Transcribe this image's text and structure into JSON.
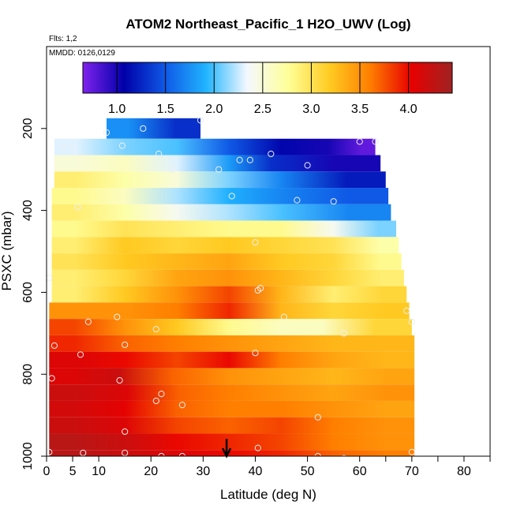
{
  "chart_data": {
    "type": "heatmap",
    "title": "ATOM2 Northeast_Pacific_1 H2O_UWV (Log)",
    "flights_label": "Flts: 1,2",
    "dates_label": "MMDD: 0126,0129",
    "xlabel": "Latitude (deg N)",
    "ylabel": "PSXC (mbar)",
    "xlim": [
      0,
      85
    ],
    "ylim": [
      1000,
      0
    ],
    "x_ticks": [
      0,
      5,
      10,
      20,
      30,
      40,
      50,
      60,
      70,
      80
    ],
    "x_minor_ticks": [
      65,
      75,
      85
    ],
    "y_ticks": [
      200,
      400,
      600,
      800,
      1000
    ],
    "colorbar": {
      "ticks": [
        "1.0",
        "1.5",
        "2.0",
        "2.5",
        "3.0",
        "3.5",
        "4.0"
      ],
      "tick_values": [
        1.0,
        1.5,
        2.0,
        2.5,
        3.0,
        3.5,
        4.0
      ],
      "range": [
        0.65,
        4.45
      ],
      "stops": [
        "#7f22ee",
        "#0000a8",
        "#0f58e6",
        "#20b4ff",
        "#f4f8ff",
        "#ffff99",
        "#ffcc22",
        "#ff7e00",
        "#e80000",
        "#9f2222"
      ]
    },
    "arrow_latitude": 34.5,
    "rows": [
      {
        "p_top": 175,
        "p_bot": 225,
        "segments": [
          [
            11.5,
            20,
            1.75
          ],
          [
            20,
            29.5,
            1.3
          ]
        ]
      },
      {
        "p_top": 225,
        "p_bot": 265,
        "segments": [
          [
            1.5,
            10,
            2.3
          ],
          [
            10,
            20,
            2.1
          ],
          [
            20,
            30,
            2.0
          ],
          [
            30,
            40,
            1.5
          ],
          [
            40,
            50,
            1.1
          ],
          [
            50,
            58,
            1.0
          ],
          [
            58,
            63,
            0.75
          ]
        ]
      },
      {
        "p_top": 265,
        "p_bot": 305,
        "segments": [
          [
            1.5,
            10,
            2.5
          ],
          [
            10,
            20,
            2.6
          ],
          [
            20,
            30,
            2.3
          ],
          [
            30,
            40,
            1.8
          ],
          [
            40,
            46,
            1.3
          ],
          [
            46,
            64,
            1.0
          ]
        ]
      },
      {
        "p_top": 305,
        "p_bot": 345,
        "segments": [
          [
            1.5,
            10,
            2.9
          ],
          [
            10,
            20,
            2.7
          ],
          [
            20,
            30,
            2.5
          ],
          [
            30,
            40,
            2.1
          ],
          [
            40,
            50,
            1.7
          ],
          [
            50,
            65,
            1.2
          ]
        ]
      },
      {
        "p_top": 345,
        "p_bot": 385,
        "segments": [
          [
            1,
            10,
            2.8
          ],
          [
            10,
            20,
            2.6
          ],
          [
            20,
            30,
            2.2
          ],
          [
            30,
            40,
            1.9
          ],
          [
            40,
            50,
            1.7
          ],
          [
            50,
            65.5,
            1.5
          ]
        ]
      },
      {
        "p_top": 385,
        "p_bot": 425,
        "segments": [
          [
            1,
            10,
            2.9
          ],
          [
            10,
            20,
            2.7
          ],
          [
            20,
            30,
            2.4
          ],
          [
            30,
            40,
            2.2
          ],
          [
            40,
            50,
            2.0
          ],
          [
            50,
            66,
            1.7
          ]
        ]
      },
      {
        "p_top": 425,
        "p_bot": 465,
        "segments": [
          [
            1,
            10,
            2.8
          ],
          [
            10,
            20,
            3.0
          ],
          [
            20,
            30,
            2.9
          ],
          [
            30,
            40,
            2.8
          ],
          [
            40,
            50,
            2.8
          ],
          [
            50,
            60,
            2.4
          ],
          [
            60,
            67,
            2.1
          ]
        ]
      },
      {
        "p_top": 465,
        "p_bot": 505,
        "segments": [
          [
            1,
            10,
            2.9
          ],
          [
            10,
            20,
            3.2
          ],
          [
            20,
            30,
            3.1
          ],
          [
            30,
            40,
            3.2
          ],
          [
            40,
            50,
            3.1
          ],
          [
            50,
            60,
            3.0
          ],
          [
            60,
            67.5,
            2.7
          ]
        ]
      },
      {
        "p_top": 505,
        "p_bot": 545,
        "segments": [
          [
            1,
            10,
            3.0
          ],
          [
            10,
            20,
            3.2
          ],
          [
            20,
            30,
            3.3
          ],
          [
            30,
            40,
            3.4
          ],
          [
            40,
            50,
            3.2
          ],
          [
            50,
            60,
            3.1
          ],
          [
            60,
            68,
            2.8
          ]
        ]
      },
      {
        "p_top": 545,
        "p_bot": 585,
        "segments": [
          [
            1,
            10,
            2.9
          ],
          [
            10,
            20,
            3.1
          ],
          [
            20,
            30,
            3.4
          ],
          [
            30,
            40,
            3.5
          ],
          [
            40,
            50,
            3.3
          ],
          [
            50,
            60,
            3.1
          ],
          [
            60,
            68.5,
            2.9
          ]
        ]
      },
      {
        "p_top": 585,
        "p_bot": 625,
        "segments": [
          [
            1,
            10,
            2.9
          ],
          [
            10,
            20,
            3.2
          ],
          [
            20,
            30,
            3.5
          ],
          [
            30,
            40,
            3.8
          ],
          [
            40,
            50,
            3.3
          ],
          [
            50,
            60,
            2.9
          ],
          [
            60,
            69,
            3.1
          ]
        ]
      },
      {
        "p_top": 625,
        "p_bot": 665,
        "segments": [
          [
            0.5,
            10,
            3.5
          ],
          [
            10,
            20,
            3.5
          ],
          [
            20,
            30,
            3.6
          ],
          [
            30,
            40,
            3.9
          ],
          [
            40,
            50,
            3.3
          ],
          [
            50,
            60,
            3.1
          ],
          [
            60,
            69.5,
            3.2
          ]
        ]
      },
      {
        "p_top": 665,
        "p_bot": 705,
        "segments": [
          [
            0.5,
            10,
            3.8
          ],
          [
            10,
            20,
            3.5
          ],
          [
            20,
            30,
            3.2
          ],
          [
            30,
            40,
            2.8
          ],
          [
            40,
            50,
            2.6
          ],
          [
            50,
            56,
            2.6
          ],
          [
            56,
            70,
            3.1
          ]
        ]
      },
      {
        "p_top": 705,
        "p_bot": 745,
        "segments": [
          [
            0.5,
            10,
            3.9
          ],
          [
            10,
            20,
            3.7
          ],
          [
            20,
            30,
            3.6
          ],
          [
            30,
            40,
            3.5
          ],
          [
            40,
            50,
            3.4
          ],
          [
            50,
            60,
            3.3
          ],
          [
            60,
            70.5,
            3.3
          ]
        ]
      },
      {
        "p_top": 745,
        "p_bot": 785,
        "segments": [
          [
            0.5,
            10,
            4.1
          ],
          [
            10,
            20,
            4.0
          ],
          [
            20,
            30,
            3.8
          ],
          [
            30,
            40,
            4.0
          ],
          [
            40,
            50,
            3.6
          ],
          [
            50,
            60,
            3.4
          ],
          [
            60,
            70.5,
            3.3
          ]
        ]
      },
      {
        "p_top": 785,
        "p_bot": 825,
        "segments": [
          [
            0.5,
            10,
            4.1
          ],
          [
            10,
            18,
            4.2
          ],
          [
            18,
            30,
            3.7
          ],
          [
            30,
            40,
            3.5
          ],
          [
            40,
            50,
            3.4
          ],
          [
            50,
            60,
            3.3
          ],
          [
            60,
            70.5,
            3.4
          ]
        ]
      },
      {
        "p_top": 825,
        "p_bot": 865,
        "segments": [
          [
            0.5,
            10,
            4.2
          ],
          [
            10,
            21,
            4.1
          ],
          [
            21,
            30,
            3.7
          ],
          [
            30,
            40,
            3.6
          ],
          [
            40,
            50,
            3.5
          ],
          [
            50,
            60,
            3.4
          ],
          [
            60,
            70.5,
            3.5
          ]
        ]
      },
      {
        "p_top": 865,
        "p_bot": 905,
        "segments": [
          [
            0.5,
            10,
            4.15
          ],
          [
            10,
            20,
            4.05
          ],
          [
            20,
            30,
            3.7
          ],
          [
            30,
            40,
            3.6
          ],
          [
            40,
            50,
            3.6
          ],
          [
            50,
            60,
            3.5
          ],
          [
            60,
            70.5,
            3.4
          ]
        ]
      },
      {
        "p_top": 905,
        "p_bot": 945,
        "segments": [
          [
            0.5,
            10,
            4.2
          ],
          [
            10,
            20,
            4.1
          ],
          [
            20,
            30,
            3.8
          ],
          [
            30,
            40,
            3.7
          ],
          [
            40,
            50,
            3.8
          ],
          [
            50,
            60,
            3.6
          ],
          [
            60,
            70.5,
            3.5
          ]
        ]
      },
      {
        "p_top": 945,
        "p_bot": 985,
        "segments": [
          [
            0.5,
            10,
            4.3
          ],
          [
            10,
            20,
            4.2
          ],
          [
            20,
            30,
            4.0
          ],
          [
            30,
            40,
            3.9
          ],
          [
            40,
            50,
            3.8
          ],
          [
            50,
            60,
            3.6
          ],
          [
            60,
            70.5,
            3.5
          ]
        ]
      },
      {
        "p_top": 985,
        "p_bot": 1000,
        "segments": [
          [
            0.5,
            10,
            4.3
          ],
          [
            10,
            20,
            4.2
          ],
          [
            20,
            30,
            4.1
          ],
          [
            30,
            40,
            4.0
          ],
          [
            40,
            50,
            3.9
          ],
          [
            50,
            60,
            3.7
          ],
          [
            60,
            70.5,
            3.6
          ]
        ]
      }
    ],
    "points": [
      [
        11.5,
        210
      ],
      [
        18.5,
        200
      ],
      [
        29.5,
        180
      ],
      [
        3,
        245
      ],
      [
        5,
        245
      ],
      [
        14.5,
        242
      ],
      [
        21.5,
        262
      ],
      [
        24,
        300
      ],
      [
        33,
        300
      ],
      [
        37,
        277
      ],
      [
        39,
        277
      ],
      [
        43,
        262
      ],
      [
        50,
        290
      ],
      [
        60,
        232
      ],
      [
        63,
        232
      ],
      [
        35.5,
        365
      ],
      [
        48,
        375
      ],
      [
        55,
        378
      ],
      [
        6,
        392
      ],
      [
        40,
        478
      ],
      [
        0.5,
        565
      ],
      [
        40.5,
        595
      ],
      [
        41,
        590
      ],
      [
        8,
        672
      ],
      [
        13.5,
        660
      ],
      [
        21,
        690
      ],
      [
        45.5,
        660
      ],
      [
        57,
        700
      ],
      [
        69,
        645
      ],
      [
        70,
        672
      ],
      [
        1.5,
        730
      ],
      [
        6.5,
        752
      ],
      [
        15,
        728
      ],
      [
        40,
        748
      ],
      [
        1,
        810
      ],
      [
        14,
        815
      ],
      [
        22,
        848
      ],
      [
        21,
        865
      ],
      [
        26,
        875
      ],
      [
        52,
        905
      ],
      [
        15,
        940
      ],
      [
        0.5,
        990
      ],
      [
        7,
        992
      ],
      [
        15,
        992
      ],
      [
        22,
        1000
      ],
      [
        26,
        1000
      ],
      [
        40.5,
        980
      ],
      [
        46,
        1010
      ],
      [
        52,
        1000
      ],
      [
        57,
        1005
      ],
      [
        70,
        990
      ]
    ]
  }
}
